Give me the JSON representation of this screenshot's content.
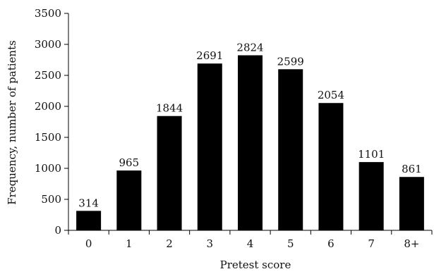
{
  "chart_data": {
    "type": "bar",
    "title": "",
    "xlabel": "Pretest score",
    "ylabel": "Frequency, number of patients",
    "categories": [
      "0",
      "1",
      "2",
      "3",
      "4",
      "5",
      "6",
      "7",
      "8+"
    ],
    "values": [
      314,
      965,
      1844,
      2691,
      2824,
      2599,
      2054,
      1101,
      861
    ],
    "data_labels": [
      "314",
      "965",
      "1844",
      "2691",
      "2824",
      "2599",
      "2054",
      "1101",
      "861"
    ],
    "bar_color": "#000000",
    "ylim": [
      0,
      3500
    ],
    "yticks": [
      0,
      500,
      1000,
      1500,
      2000,
      2500,
      3000,
      3500
    ],
    "ytick_labels": [
      "0",
      "500",
      "1000",
      "1500",
      "2000",
      "2500",
      "3000",
      "3500"
    ],
    "grid": false,
    "legend": "none"
  }
}
